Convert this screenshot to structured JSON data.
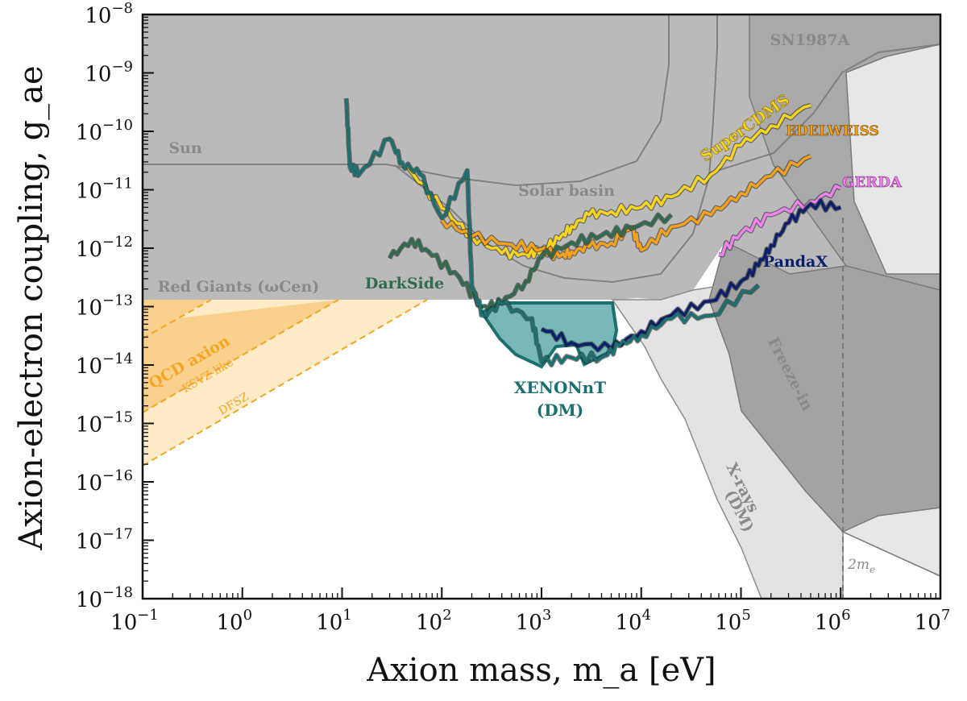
{
  "chart_data": {
    "type": "line",
    "title": "",
    "xlabel": "Axion mass, m_a [eV]",
    "ylabel": "Axion-electron coupling, g_ae",
    "xscale": "log",
    "yscale": "log",
    "xlim": [
      0.1,
      10000000
    ],
    "ylim": [
      1e-18,
      1e-08
    ],
    "grid": false,
    "x_ticks": [
      "10",
      "10",
      "10",
      "10",
      "10",
      "10",
      "10",
      "10",
      "10"
    ],
    "x_tick_exponents": [
      "−1",
      "0",
      "1",
      "2",
      "3",
      "4",
      "5",
      "6",
      "7"
    ],
    "y_ticks": [
      "10",
      "10",
      "10",
      "10",
      "10",
      "10",
      "10",
      "10",
      "10",
      "10",
      "10"
    ],
    "y_tick_exponents": [
      "−18",
      "−17",
      "−16",
      "−15",
      "−14",
      "−13",
      "−12",
      "−11",
      "−10",
      "−9",
      "−8"
    ],
    "regions": [
      {
        "label": "SN1987A",
        "color": "#a9a9a9"
      },
      {
        "label": "Sun",
        "color": "#b8b8b8"
      },
      {
        "label": "Solar basin",
        "color": "#b8b8b8"
      },
      {
        "label": "Red Giants (ωCen)",
        "color": "#b8b8b8"
      },
      {
        "label": "Freeze-in",
        "color": "#9a9a9a"
      },
      {
        "label": "X-rays",
        "label2": "(DM)",
        "color": "#e3e3e3"
      },
      {
        "label": "QCD axion",
        "color": "#f7c97a"
      },
      {
        "label": "KSVZ-like",
        "color": "#f5a623"
      },
      {
        "label": "DFSZ",
        "color": "#f5a623"
      },
      {
        "label": "2m",
        "label_sub": "e",
        "color": "#888888"
      }
    ],
    "series": [
      {
        "name": "SuperCDMS",
        "color": "#f6d31c",
        "x": [
          45,
          100,
          200,
          400,
          700,
          1000,
          1500,
          2000,
          3000,
          5000,
          10000,
          20000,
          50000,
          100000,
          200000,
          500000
        ],
        "y": [
          2.5e-11,
          4e-12,
          1.3e-12,
          8e-13,
          1e-12,
          1.2e-12,
          1.5e-12,
          2e-12,
          3e-12,
          4e-12,
          6e-12,
          1e-11,
          2e-11,
          5e-11,
          1e-10,
          2.5e-10
        ]
      },
      {
        "name": "EDELWEISS",
        "color": "#f5a01a",
        "x": [
          100,
          200,
          500,
          1000,
          1500,
          2000,
          3000,
          5000,
          8000,
          10000,
          20000,
          50000,
          100000,
          200000,
          500000
        ],
        "y": [
          3e-12,
          2e-12,
          1.5e-12,
          1e-12,
          6e-13,
          7e-13,
          1e-12,
          1.5e-12,
          3e-12,
          1e-12,
          2e-12,
          3e-12,
          8e-12,
          2e-11,
          5e-11
        ]
      },
      {
        "name": "GERDA",
        "color": "#ee82ee",
        "x": [
          60000,
          100000,
          200000,
          500000,
          1000000
        ],
        "y": [
          8e-13,
          1.5e-12,
          3e-12,
          6e-12,
          1.3e-11
        ]
      },
      {
        "name": "PandaX",
        "color": "#0b1f6b",
        "x": [
          1000,
          2000,
          5000,
          10000,
          20000,
          50000,
          100000,
          150000,
          200000,
          300000,
          500000,
          1000000
        ],
        "y": [
          4e-14,
          3e-14,
          2.5e-14,
          4e-14,
          6e-14,
          1e-13,
          2.5e-13,
          6e-13,
          1.5e-12,
          3e-12,
          5e-12,
          4e-12
        ]
      },
      {
        "name": "DarkSide",
        "color": "#2f6b4c",
        "x": [
          30,
          50,
          80,
          150,
          250,
          400,
          700,
          1000,
          2000,
          4000,
          8000,
          20000
        ],
        "y": [
          7e-13,
          1.2e-12,
          6e-13,
          3e-13,
          1.2e-13,
          1.5e-13,
          3e-13,
          6e-13,
          1e-12,
          1.5e-12,
          2.5e-12,
          5e-12
        ]
      },
      {
        "name": "XENONnT",
        "name2": "(DM)",
        "color": "#1b6f6f",
        "fill": "#79b8b9",
        "x": [
          11,
          12,
          15,
          30,
          40,
          60,
          100,
          180,
          200,
          260,
          400,
          800,
          1000,
          2000,
          4000,
          6000,
          10000,
          20000,
          50000,
          150000
        ],
        "y": [
          3.5e-10,
          3e-11,
          2.5e-11,
          8e-11,
          2.5e-11,
          1.5e-11,
          3e-12,
          2.5e-11,
          3e-13,
          8e-14,
          1e-13,
          5e-14,
          1e-14,
          1.5e-14,
          1.8e-14,
          2.5e-14,
          3e-14,
          5e-14,
          6e-14,
          2.5e-13
        ]
      }
    ]
  }
}
